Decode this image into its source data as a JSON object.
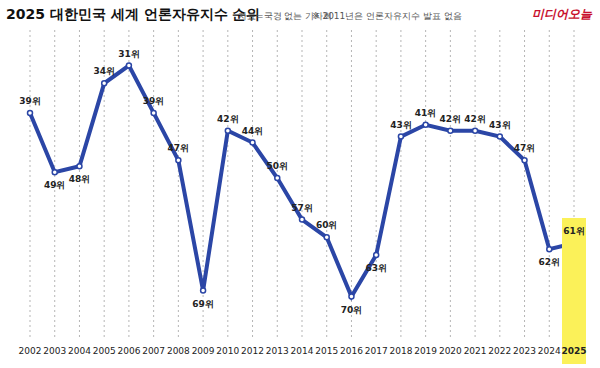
{
  "chart_data": {
    "type": "line",
    "title": "2025 대한민국 세계 언론자유지수 순위",
    "annotations": [
      "자료=국경 없는 기자회",
      "※ 2011년은 언론자유지수 발표 없음",
      "미디어오늘"
    ],
    "categories": [
      "2002",
      "2003",
      "2004",
      "2005",
      "2006",
      "2007",
      "2008",
      "2009",
      "2010",
      "2012",
      "2013",
      "2014",
      "2015",
      "2016",
      "2017",
      "2018",
      "2019",
      "2020",
      "2021",
      "2022",
      "2023",
      "2024",
      "2025"
    ],
    "values": [
      39,
      49,
      48,
      34,
      31,
      39,
      47,
      69,
      42,
      44,
      50,
      57,
      60,
      70,
      63,
      43,
      41,
      42,
      42,
      43,
      47,
      62,
      61
    ],
    "value_labels": [
      "39위",
      "49위",
      "48위",
      "34위",
      "31위",
      "39위",
      "47위",
      "69위",
      "42위",
      "44위",
      "50위",
      "57위",
      "60위",
      "70위",
      "63위",
      "43위",
      "41위",
      "42위",
      "42위",
      "43위",
      "47위",
      "62위",
      "61위"
    ],
    "color": "#2b46a6",
    "ylim": [
      25,
      77
    ],
    "tick_labels": "x",
    "grid": true,
    "data_labels": true,
    "marker": "circle"
  }
}
